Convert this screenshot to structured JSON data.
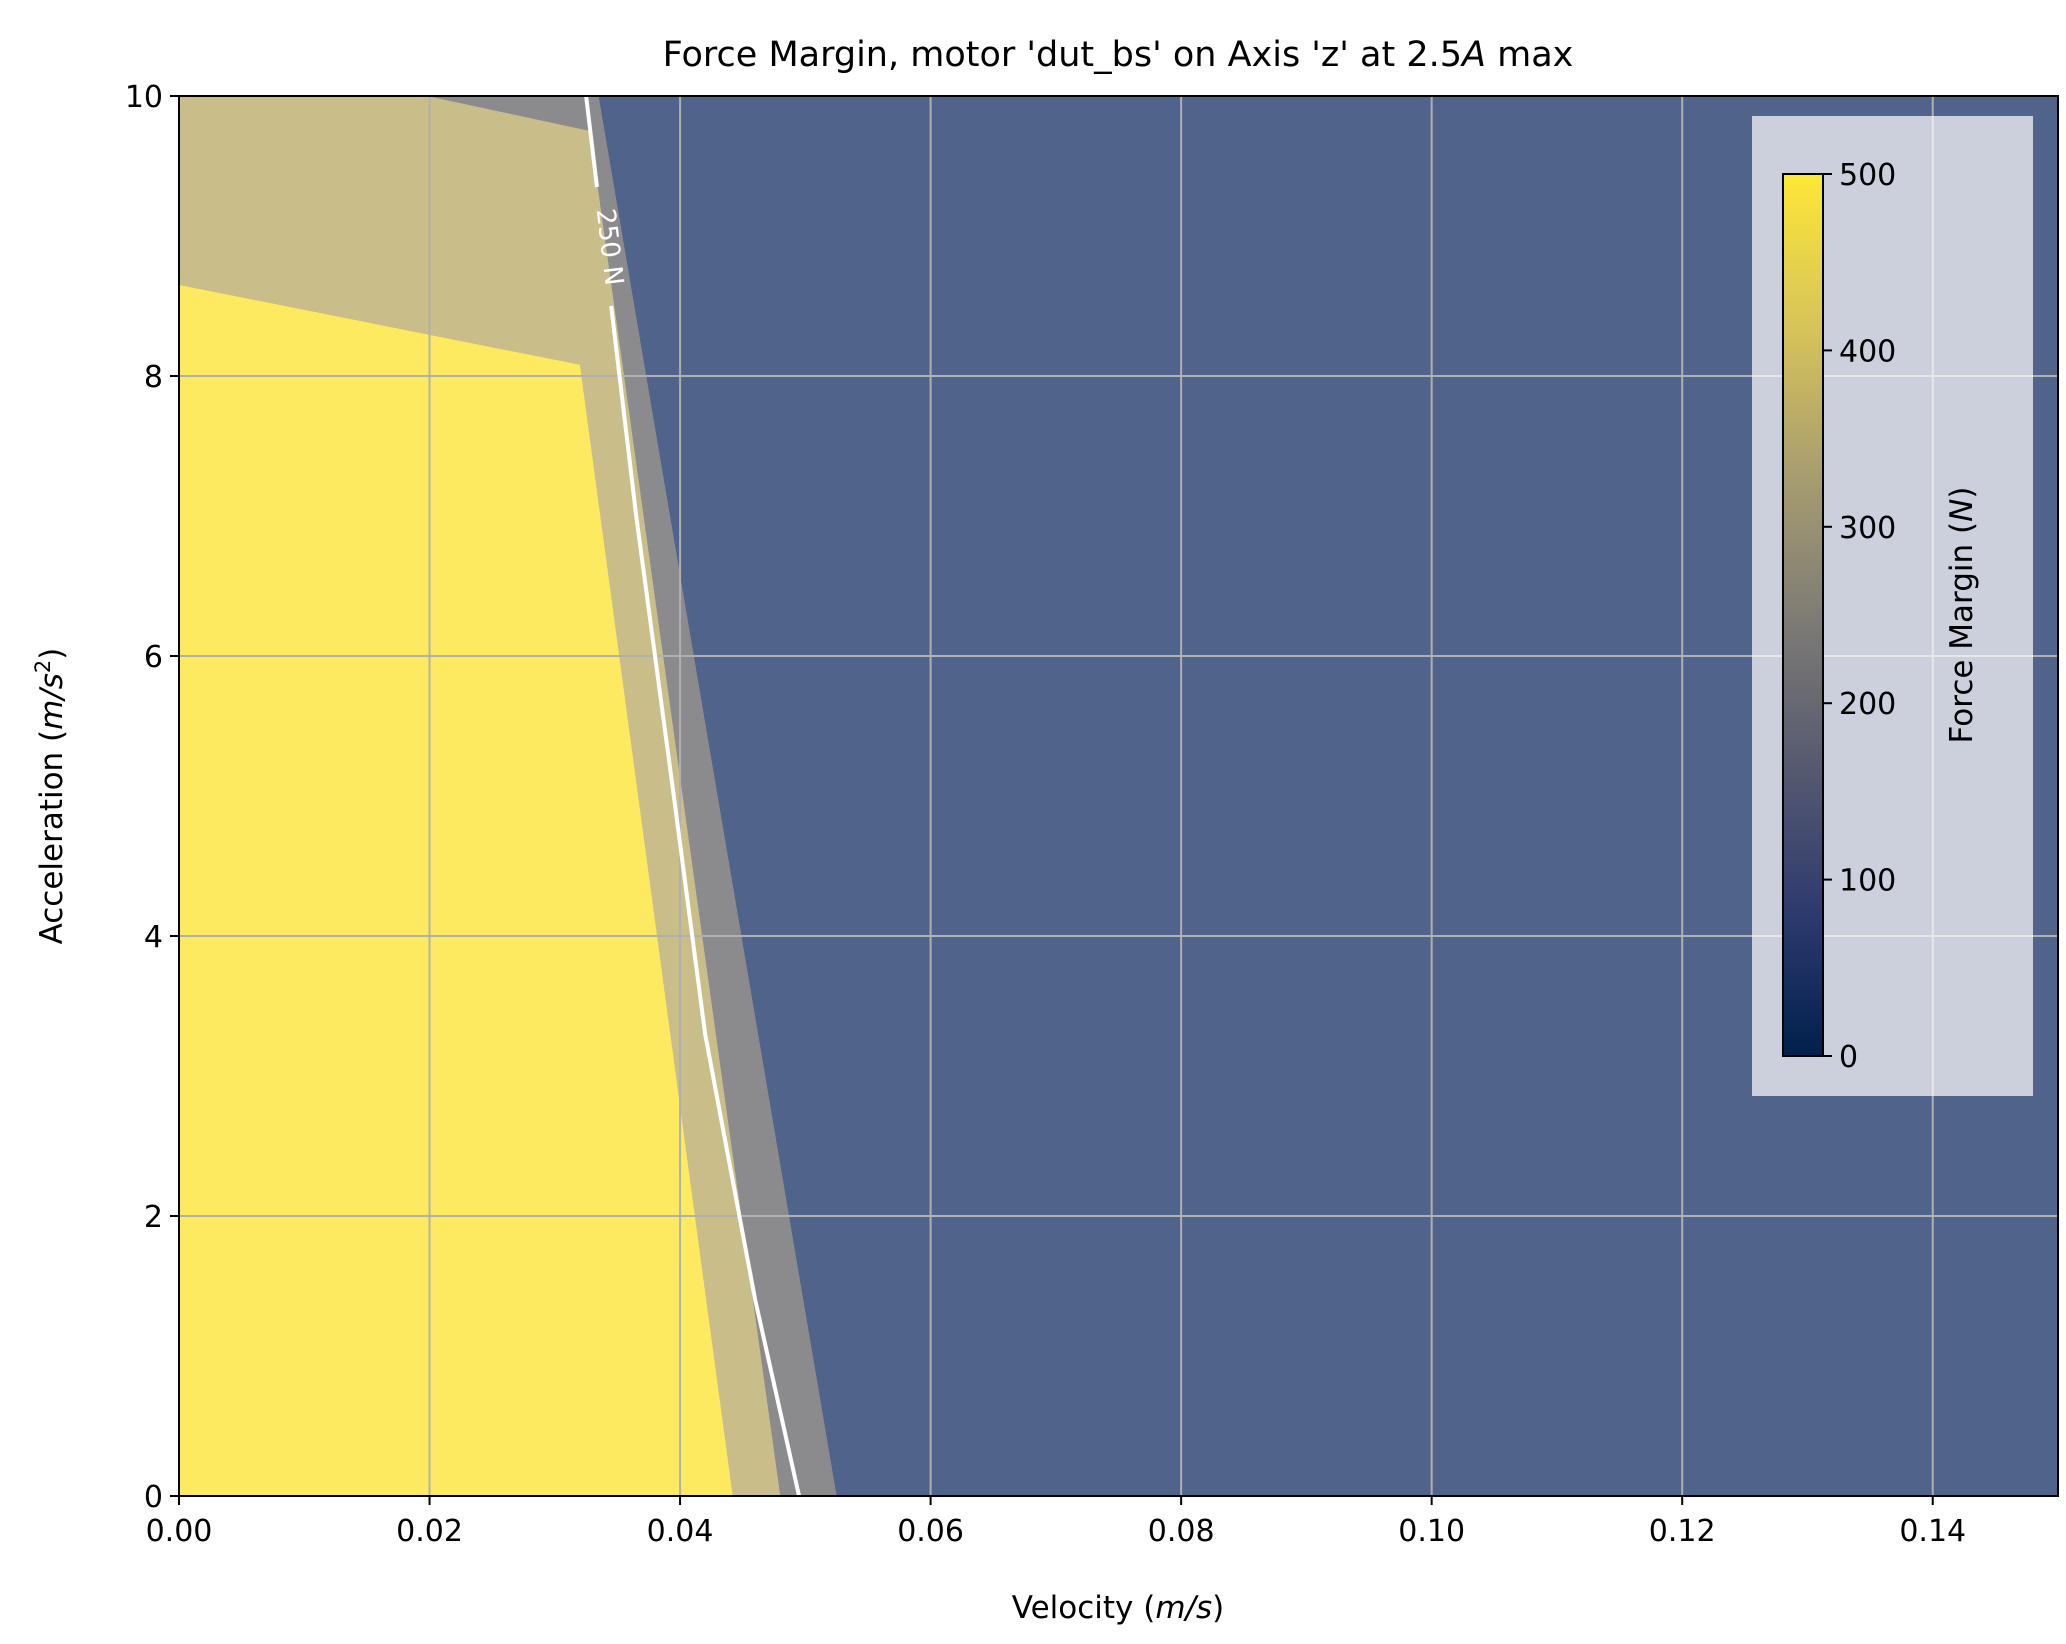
{
  "chart_data": {
    "type": "contour",
    "title": "Force Margin, motor 'dut_bs' on Axis 'z' at 2.5",
    "title_italic": "A",
    "title_suffix": " max",
    "xlabel": "Velocity (",
    "xlabel_unit": "m/s",
    "xlabel_close": ")",
    "ylabel": "Acceleration (",
    "ylabel_unit": "m/s",
    "ylabel_sup": "2",
    "ylabel_close": ")",
    "xlim": [
      0,
      0.15
    ],
    "ylim": [
      0,
      10
    ],
    "x_ticks": [
      {
        "value": 0.0,
        "label": "0.00"
      },
      {
        "value": 0.02,
        "label": "0.02"
      },
      {
        "value": 0.04,
        "label": "0.04"
      },
      {
        "value": 0.06,
        "label": "0.06"
      },
      {
        "value": 0.08,
        "label": "0.08"
      },
      {
        "value": 0.1,
        "label": "0.10"
      },
      {
        "value": 0.12,
        "label": "0.12"
      },
      {
        "value": 0.14,
        "label": "0.14"
      }
    ],
    "y_ticks": [
      {
        "value": 0,
        "label": "0"
      },
      {
        "value": 2,
        "label": "2"
      },
      {
        "value": 4,
        "label": "4"
      },
      {
        "value": 6,
        "label": "6"
      },
      {
        "value": 8,
        "label": "8"
      },
      {
        "value": 10,
        "label": "10"
      }
    ],
    "grid": true,
    "colormap": "cividis",
    "regions": [
      {
        "level": "lowest",
        "color": "#50638a",
        "points": [
          [
            0,
            0
          ],
          [
            0.15,
            0
          ],
          [
            0.15,
            10
          ],
          [
            0,
            10
          ]
        ]
      },
      {
        "level": "mid",
        "color": "#8b8b8e",
        "points": [
          [
            0,
            0
          ],
          [
            0.0525,
            0
          ],
          [
            0.0335,
            10
          ],
          [
            0,
            10
          ]
        ]
      },
      {
        "level": "high",
        "color": "#c9be8a",
        "points": [
          [
            0,
            0
          ],
          [
            0.048,
            0
          ],
          [
            0.0328,
            9.75
          ],
          [
            0.0198,
            10
          ],
          [
            0,
            10
          ]
        ]
      },
      {
        "level": "highest",
        "color": "#fdea60",
        "points": [
          [
            0,
            0
          ],
          [
            0.0442,
            0
          ],
          [
            0.032,
            8.08
          ],
          [
            0,
            8.65
          ]
        ]
      }
    ],
    "contour_line": {
      "level": 250,
      "label": "250 N",
      "color": "#ffffff",
      "points": [
        [
          0.0495,
          0
        ],
        [
          0.046,
          1.4
        ],
        [
          0.042,
          3.3
        ],
        [
          0.0395,
          5.0
        ],
        [
          0.0365,
          7.0
        ],
        [
          0.0345,
          8.5
        ],
        [
          0.0325,
          10
        ]
      ],
      "gap": [
        8.5,
        9.35
      ],
      "label_at": [
        0.0343,
        8.92
      ]
    },
    "colorbar": {
      "label": "Force Margin (",
      "label_unit": "N",
      "label_close": ")",
      "range": [
        0,
        500
      ],
      "ticks": [
        {
          "value": 0,
          "label": "0"
        },
        {
          "value": 100,
          "label": "100"
        },
        {
          "value": 200,
          "label": "200"
        },
        {
          "value": 300,
          "label": "300"
        },
        {
          "value": 400,
          "label": "400"
        },
        {
          "value": 500,
          "label": "500"
        }
      ],
      "stops": [
        "#00204c",
        "#2f3b6f",
        "#575b70",
        "#7f7c75",
        "#aa9f6f",
        "#d8c559",
        "#fde737"
      ],
      "placement": "top-right"
    }
  }
}
